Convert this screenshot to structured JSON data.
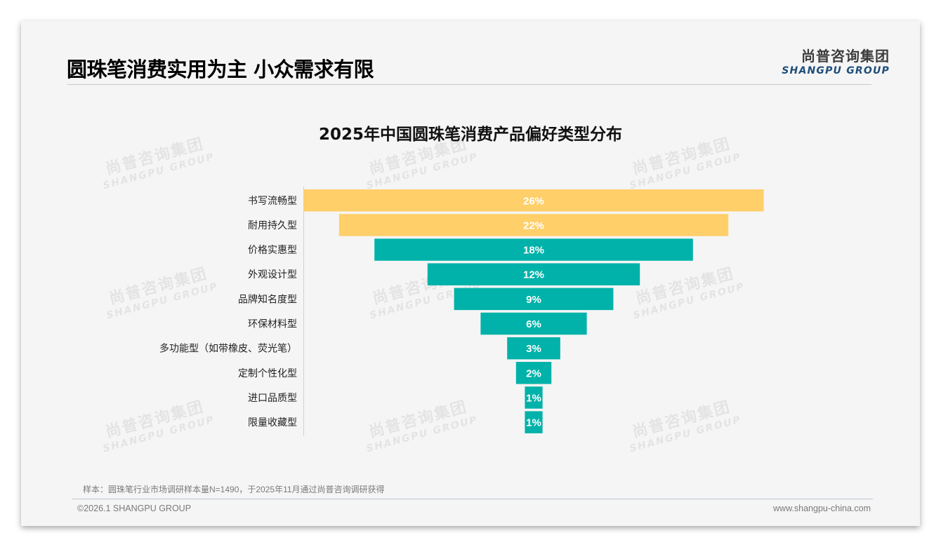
{
  "header": {
    "title": "圆珠笔消费实用为主 小众需求有限",
    "logo_cn": "尚普咨询集团",
    "logo_en": "SHANGPU GROUP"
  },
  "watermark": {
    "cn": "尚普咨询集团",
    "en": "SHANGPU GROUP"
  },
  "chart_data": {
    "type": "bar",
    "orientation": "horizontal-centered-funnel",
    "title": "2025年中国圆珠笔消费产品偏好类型分布",
    "categories": [
      "书写流畅型",
      "耐用持久型",
      "价格实惠型",
      "外观设计型",
      "品牌知名度型",
      "环保材料型",
      "多功能型（如带橡皮、荧光笔）",
      "定制个性化型",
      "进口品质型",
      "限量收藏型"
    ],
    "values": [
      26,
      22,
      18,
      12,
      9,
      6,
      3,
      2,
      1,
      1
    ],
    "labels": [
      "26%",
      "22%",
      "18%",
      "12%",
      "9%",
      "6%",
      "3%",
      "2%",
      "1%",
      "1%"
    ],
    "colors": [
      "#FFCF6A",
      "#FFCF6A",
      "#00B2A9",
      "#00B2A9",
      "#00B2A9",
      "#00B2A9",
      "#00B2A9",
      "#00B2A9",
      "#00B2A9",
      "#00B2A9"
    ],
    "unit": "%"
  },
  "footer": {
    "note": "样本：圆珠笔行业市场调研样本量N=1490，于2025年11月通过尚普咨询调研获得",
    "copyright": "©2026.1 SHANGPU GROUP",
    "url": "www.shangpu-china.com"
  }
}
